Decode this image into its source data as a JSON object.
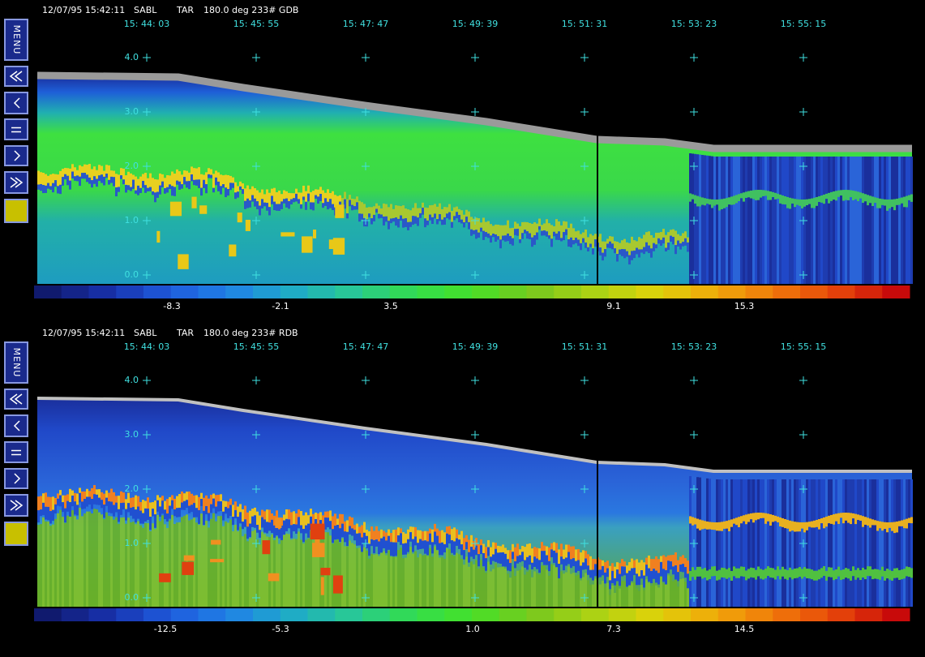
{
  "panels": [
    {
      "header": {
        "timestamp": "12/07/95 15:42:11",
        "site": "SABL",
        "mode": "TAR",
        "info": "180.0 deg 233# GDB"
      },
      "times": [
        "15: 44: 03",
        "15: 45: 55",
        "15: 47: 47",
        "15: 49: 39",
        "15: 51: 31",
        "15: 53: 23",
        "15: 55: 15"
      ],
      "altitudes": [
        "4.0",
        "3.0",
        "2.0",
        "1.0",
        "0.0"
      ],
      "colorbar_labels": [
        "-8.3",
        "-2.1",
        "3.5",
        "9.1",
        "15.3"
      ]
    },
    {
      "header": {
        "timestamp": "12/07/95 15:42:11",
        "site": "SABL",
        "mode": "TAR",
        "info": "180.0 deg 233# RDB"
      },
      "times": [
        "15: 44: 03",
        "15: 45: 55",
        "15: 47: 47",
        "15: 49: 39",
        "15: 51: 31",
        "15: 53: 23",
        "15: 55: 15"
      ],
      "altitudes": [
        "4.0",
        "3.0",
        "2.0",
        "1.0",
        "0.0"
      ],
      "colorbar_labels": [
        "-12.5",
        "-5.3",
        "1.0",
        "7.3",
        "14.5"
      ]
    }
  ],
  "menu_label": "MENU"
}
